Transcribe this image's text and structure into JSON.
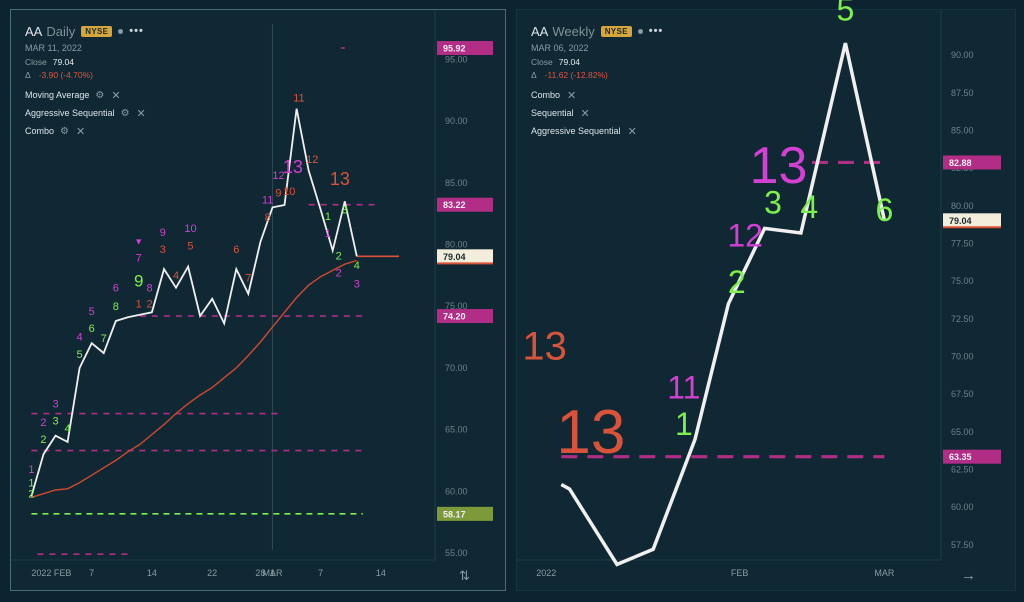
{
  "panels": [
    {
      "symbol": "AA",
      "period": "Daily",
      "exchange": "NYSE",
      "date": "MAR 11, 2022",
      "close_label": "Close",
      "close_value": "79.04",
      "delta_symbol": "Δ",
      "delta": "-3.90 (-4.70%)",
      "studies": [
        "Moving Average",
        "Aggressive Sequential",
        "Combo"
      ]
    },
    {
      "symbol": "AA",
      "period": "Weekly",
      "exchange": "NYSE",
      "date": "MAR 06, 2022",
      "close_label": "Close",
      "close_value": "79.04",
      "delta_symbol": "Δ",
      "delta": "-11.62 (-12.82%)",
      "studies": [
        "Combo",
        "Sequential",
        "Aggressive Sequential"
      ]
    }
  ],
  "icons": {
    "more": "•••",
    "gear": "gear-icon",
    "close": "close-icon",
    "swap": "swap-vertical-icon",
    "arrow": "arrow-right-icon"
  },
  "colors": {
    "price_line": "#f0f0f0",
    "ma_line": "#d2482e",
    "green": "#7ef04c",
    "magenta": "#d43fd4",
    "red": "#d9533a",
    "level_magenta": "#b12d86",
    "level_green": "#7c9a3a",
    "current_price": "#f3eedb"
  },
  "chart_data": [
    {
      "type": "line",
      "title": "AA Daily",
      "ylim": [
        52,
        99
      ],
      "yticks": [
        "95.00",
        "90.00",
        "85.00",
        "80.00",
        "75.00",
        "70.00",
        "65.00",
        "60.00",
        "55.00"
      ],
      "yvals": [
        95,
        90,
        85,
        80,
        75,
        70,
        65,
        60,
        55
      ],
      "x_labels": [
        {
          "label": "2022 FEB",
          "x": 0
        },
        {
          "label": "7",
          "x": 5
        },
        {
          "label": "14",
          "x": 10
        },
        {
          "label": "22",
          "x": 15
        },
        {
          "label": "28",
          "x": 19
        },
        {
          "label": "MAR",
          "x": 20
        },
        {
          "label": "1",
          "x": 20
        },
        {
          "label": "7",
          "x": 24
        },
        {
          "label": "14",
          "x": 29
        }
      ],
      "x_range": [
        -0.2,
        30.5
      ],
      "session_break_x": 20,
      "price": [
        {
          "x": 0,
          "y": 59.6
        },
        {
          "x": 1,
          "y": 63.0
        },
        {
          "x": 2,
          "y": 64.5
        },
        {
          "x": 3,
          "y": 64.0
        },
        {
          "x": 4,
          "y": 70.0
        },
        {
          "x": 5,
          "y": 72.0
        },
        {
          "x": 6,
          "y": 71.2
        },
        {
          "x": 7,
          "y": 73.8
        },
        {
          "x": 8,
          "y": 74.1
        },
        {
          "x": 9,
          "y": 74.3
        },
        {
          "x": 10,
          "y": 74.5
        },
        {
          "x": 11,
          "y": 78.0
        },
        {
          "x": 12,
          "y": 76.5
        },
        {
          "x": 13,
          "y": 78.2
        },
        {
          "x": 14,
          "y": 74.2
        },
        {
          "x": 15,
          "y": 75.6
        },
        {
          "x": 16,
          "y": 73.6
        },
        {
          "x": 17,
          "y": 78.0
        },
        {
          "x": 18,
          "y": 76.0
        },
        {
          "x": 19,
          "y": 80.2
        },
        {
          "x": 20,
          "y": 83.0
        },
        {
          "x": 21,
          "y": 83.2
        },
        {
          "x": 22,
          "y": 91.0
        },
        {
          "x": 23,
          "y": 86.0
        },
        {
          "x": 24,
          "y": 82.8
        },
        {
          "x": 25,
          "y": 79.5
        },
        {
          "x": 26,
          "y": 83.5
        },
        {
          "x": 27,
          "y": 79.04
        }
      ],
      "moving_average": [
        {
          "x": 0,
          "y": 59.5
        },
        {
          "x": 1,
          "y": 59.8
        },
        {
          "x": 2,
          "y": 60.1
        },
        {
          "x": 3,
          "y": 60.2
        },
        {
          "x": 4,
          "y": 60.7
        },
        {
          "x": 5,
          "y": 61.3
        },
        {
          "x": 6,
          "y": 61.9
        },
        {
          "x": 7,
          "y": 62.5
        },
        {
          "x": 8,
          "y": 63.2
        },
        {
          "x": 9,
          "y": 63.8
        },
        {
          "x": 10,
          "y": 64.6
        },
        {
          "x": 11,
          "y": 65.4
        },
        {
          "x": 12,
          "y": 66.3
        },
        {
          "x": 13,
          "y": 67.1
        },
        {
          "x": 14,
          "y": 67.8
        },
        {
          "x": 15,
          "y": 68.4
        },
        {
          "x": 16,
          "y": 69.2
        },
        {
          "x": 17,
          "y": 70.0
        },
        {
          "x": 18,
          "y": 71.0
        },
        {
          "x": 19,
          "y": 72.1
        },
        {
          "x": 20,
          "y": 73.3
        },
        {
          "x": 21,
          "y": 74.5
        },
        {
          "x": 22,
          "y": 75.7
        },
        {
          "x": 23,
          "y": 76.7
        },
        {
          "x": 24,
          "y": 77.4
        },
        {
          "x": 25,
          "y": 77.9
        },
        {
          "x": 26,
          "y": 78.4
        },
        {
          "x": 27,
          "y": 78.7
        }
      ],
      "levels": [
        {
          "value": 95.92,
          "label": "95.92",
          "color": "#b12d86",
          "dash": "short",
          "x0": 25.7,
          "x1": 26.0
        },
        {
          "value": 83.22,
          "label": "83.22",
          "color": "#b12d86",
          "dash": "dashed",
          "x0": 23.0,
          "x1": 28.5
        },
        {
          "value": 79.04,
          "label": "79.04",
          "color": "#f3eedb",
          "dash": "none",
          "x0": 27.0,
          "x1": 30.5
        },
        {
          "value": 74.2,
          "label": "74.20",
          "color": "#b12d86",
          "dash": "dashed",
          "x0": 9.0,
          "x1": 27.5
        },
        {
          "value": 66.3,
          "label": "",
          "color": "#b12d86",
          "dash": "dashed",
          "x0": 0,
          "x1": 20.8
        },
        {
          "value": 63.3,
          "label": "",
          "color": "#b12d86",
          "dash": "dashed",
          "x0": 0,
          "x1": 27.5
        },
        {
          "value": 58.17,
          "label": "58.17",
          "color": "#7c9a3a",
          "dash": "dashed-green",
          "x0": 0,
          "x1": 27.5
        },
        {
          "value": 54.9,
          "label": "",
          "color": "#b12d86",
          "dash": "dashed",
          "x0": 0.5,
          "x1": 8.0
        }
      ],
      "annotations": [
        {
          "text": "1",
          "x": 0,
          "y": 60.4,
          "color": "#7ef04c",
          "size": 11
        },
        {
          "text": "2",
          "x": 0,
          "y": 59.5,
          "color": "#7ef04c",
          "size": 11
        },
        {
          "text": "1",
          "x": 0,
          "y": 61.5,
          "color": "#d43fd4",
          "size": 11
        },
        {
          "text": "2",
          "x": 1,
          "y": 63.9,
          "color": "#7ef04c",
          "size": 11
        },
        {
          "text": "2",
          "x": 1,
          "y": 65.3,
          "color": "#d43fd4",
          "size": 11
        },
        {
          "text": "3",
          "x": 2,
          "y": 65.4,
          "color": "#7ef04c",
          "size": 11
        },
        {
          "text": "3",
          "x": 2,
          "y": 66.8,
          "color": "#d43fd4",
          "size": 11
        },
        {
          "text": "4",
          "x": 3,
          "y": 64.8,
          "color": "#7ef04c",
          "size": 11
        },
        {
          "text": "4",
          "x": 4,
          "y": 72.2,
          "color": "#d43fd4",
          "size": 11
        },
        {
          "text": "5",
          "x": 4,
          "y": 70.8,
          "color": "#7ef04c",
          "size": 11
        },
        {
          "text": "5",
          "x": 5,
          "y": 74.3,
          "color": "#d43fd4",
          "size": 11
        },
        {
          "text": "6",
          "x": 5,
          "y": 72.9,
          "color": "#7ef04c",
          "size": 11
        },
        {
          "text": "7",
          "x": 6,
          "y": 72.1,
          "color": "#7ef04c",
          "size": 11
        },
        {
          "text": "6",
          "x": 7,
          "y": 76.2,
          "color": "#d43fd4",
          "size": 11
        },
        {
          "text": "8",
          "x": 7,
          "y": 74.7,
          "color": "#7ef04c",
          "size": 11
        },
        {
          "text": "▼",
          "x": 8.9,
          "y": 80.0,
          "color": "#d43fd4",
          "size": 9
        },
        {
          "text": "7",
          "x": 8.9,
          "y": 78.6,
          "color": "#d43fd4",
          "size": 11
        },
        {
          "text": "9",
          "x": 8.9,
          "y": 76.6,
          "color": "#7ef04c",
          "size": 17
        },
        {
          "text": "1",
          "x": 8.9,
          "y": 74.9,
          "color": "#d9533a",
          "size": 11
        },
        {
          "text": "2",
          "x": 9.8,
          "y": 74.9,
          "color": "#d9533a",
          "size": 11
        },
        {
          "text": "8",
          "x": 9.8,
          "y": 76.2,
          "color": "#d43fd4",
          "size": 11
        },
        {
          "text": "9",
          "x": 10.9,
          "y": 80.7,
          "color": "#d43fd4",
          "size": 11
        },
        {
          "text": "3",
          "x": 10.9,
          "y": 79.3,
          "color": "#d9533a",
          "size": 11
        },
        {
          "text": "4",
          "x": 12.0,
          "y": 77.2,
          "color": "#d9533a",
          "size": 11
        },
        {
          "text": "10",
          "x": 13.2,
          "y": 81.0,
          "color": "#d43fd4",
          "size": 11
        },
        {
          "text": "5",
          "x": 13.2,
          "y": 79.6,
          "color": "#d9533a",
          "size": 11
        },
        {
          "text": "6",
          "x": 17.0,
          "y": 79.3,
          "color": "#d9533a",
          "size": 11
        },
        {
          "text": "7",
          "x": 18.0,
          "y": 77.0,
          "color": "#d9533a",
          "size": 11
        },
        {
          "text": "11",
          "x": 19.6,
          "y": 83.3,
          "color": "#d43fd4",
          "size": 11
        },
        {
          "text": "8",
          "x": 19.6,
          "y": 81.9,
          "color": "#d9533a",
          "size": 11
        },
        {
          "text": "12",
          "x": 20.5,
          "y": 85.3,
          "color": "#d43fd4",
          "size": 11
        },
        {
          "text": "9",
          "x": 20.5,
          "y": 83.9,
          "color": "#d9533a",
          "size": 11
        },
        {
          "text": "13",
          "x": 21.7,
          "y": 85.8,
          "color": "#d43fd4",
          "size": 18
        },
        {
          "text": "10",
          "x": 21.4,
          "y": 84.0,
          "color": "#d9533a",
          "size": 11
        },
        {
          "text": "11",
          "x": 22.2,
          "y": 91.6,
          "color": "#d9533a",
          "size": 11
        },
        {
          "text": "12",
          "x": 23.3,
          "y": 86.6,
          "color": "#d9533a",
          "size": 11
        },
        {
          "text": "13",
          "x": 25.6,
          "y": 84.8,
          "color": "#d9533a",
          "size": 18
        },
        {
          "text": "1",
          "x": 24.6,
          "y": 82.0,
          "color": "#7ef04c",
          "size": 11
        },
        {
          "text": "1",
          "x": 24.6,
          "y": 80.6,
          "color": "#d43fd4",
          "size": 11
        },
        {
          "text": "3",
          "x": 26.0,
          "y": 82.5,
          "color": "#7ef04c",
          "size": 11
        },
        {
          "text": "2",
          "x": 25.5,
          "y": 78.8,
          "color": "#7ef04c",
          "size": 11
        },
        {
          "text": "2",
          "x": 25.5,
          "y": 77.4,
          "color": "#d43fd4",
          "size": 11
        },
        {
          "text": "4",
          "x": 27.0,
          "y": 78.0,
          "color": "#7ef04c",
          "size": 11
        },
        {
          "text": "3",
          "x": 27.0,
          "y": 76.5,
          "color": "#d43fd4",
          "size": 11
        }
      ]
    },
    {
      "type": "line",
      "title": "AA Weekly",
      "ylim": [
        54.5,
        93
      ],
      "yticks": [
        "90.00",
        "87.50",
        "85.00",
        "82.50",
        "80.00",
        "77.50",
        "75.00",
        "72.50",
        "70.00",
        "67.50",
        "65.00",
        "62.50",
        "60.00",
        "57.50"
      ],
      "yvals": [
        90,
        87.5,
        85,
        82.5,
        80,
        77.5,
        75,
        72.5,
        70,
        67.5,
        65,
        62.5,
        60,
        57.5
      ],
      "x_labels": [
        {
          "label": "2022",
          "x": -0.9
        },
        {
          "label": "FEB",
          "x": 6.4
        },
        {
          "label": "MAR",
          "x": 11.6
        }
      ],
      "x_range": [
        -0.8,
        13.2
      ],
      "price": [
        {
          "x": 0,
          "y": 61.5
        },
        {
          "x": 0.3,
          "y": 61.2
        },
        {
          "x": 2.0,
          "y": 56.2
        },
        {
          "x": 3.3,
          "y": 57.2
        },
        {
          "x": 4.8,
          "y": 64.5
        },
        {
          "x": 6.0,
          "y": 73.5
        },
        {
          "x": 7.3,
          "y": 78.5
        },
        {
          "x": 8.6,
          "y": 78.2
        },
        {
          "x": 10.2,
          "y": 90.8
        },
        {
          "x": 11.6,
          "y": 79.04
        }
      ],
      "levels": [
        {
          "value": 82.88,
          "label": "82.88",
          "color": "#b12d86",
          "dash": "long",
          "x0": 9.0,
          "x1": 11.6
        },
        {
          "value": 79.04,
          "label": "79.04",
          "color": "#f3eedb",
          "dash": "none",
          "x0": 11.6,
          "x1": 11.6
        },
        {
          "value": 63.35,
          "label": "63.35",
          "color": "#b12d86",
          "dash": "long",
          "x0": 0,
          "x1": 11.6
        }
      ],
      "annotations": [
        {
          "text": "13",
          "x": 0.2,
          "y": 69.8,
          "color": "#d9533a",
          "size": 40,
          "anchor": "end"
        },
        {
          "text": "13",
          "x": 2.3,
          "y": 63.6,
          "color": "#d9533a",
          "size": 62,
          "anchor": "end"
        },
        {
          "text": "11",
          "x": 4.4,
          "y": 67.2,
          "color": "#d43fd4",
          "size": 32
        },
        {
          "text": "1",
          "x": 4.4,
          "y": 64.8,
          "color": "#7ef04c",
          "size": 32
        },
        {
          "text": "12",
          "x": 6.6,
          "y": 77.3,
          "color": "#d43fd4",
          "size": 32
        },
        {
          "text": "2",
          "x": 6.3,
          "y": 74.2,
          "color": "#7ef04c",
          "size": 32
        },
        {
          "text": "3",
          "x": 7.6,
          "y": 79.5,
          "color": "#7ef04c",
          "size": 32
        },
        {
          "text": "4",
          "x": 8.9,
          "y": 79.2,
          "color": "#7ef04c",
          "size": 32
        },
        {
          "text": "13",
          "x": 7.8,
          "y": 81.5,
          "color": "#d43fd4",
          "size": 52
        },
        {
          "text": "5",
          "x": 10.2,
          "y": 92.3,
          "color": "#7ef04c",
          "size": 32
        },
        {
          "text": "6",
          "x": 11.6,
          "y": 79.0,
          "color": "#7ef04c",
          "size": 32
        }
      ]
    }
  ]
}
